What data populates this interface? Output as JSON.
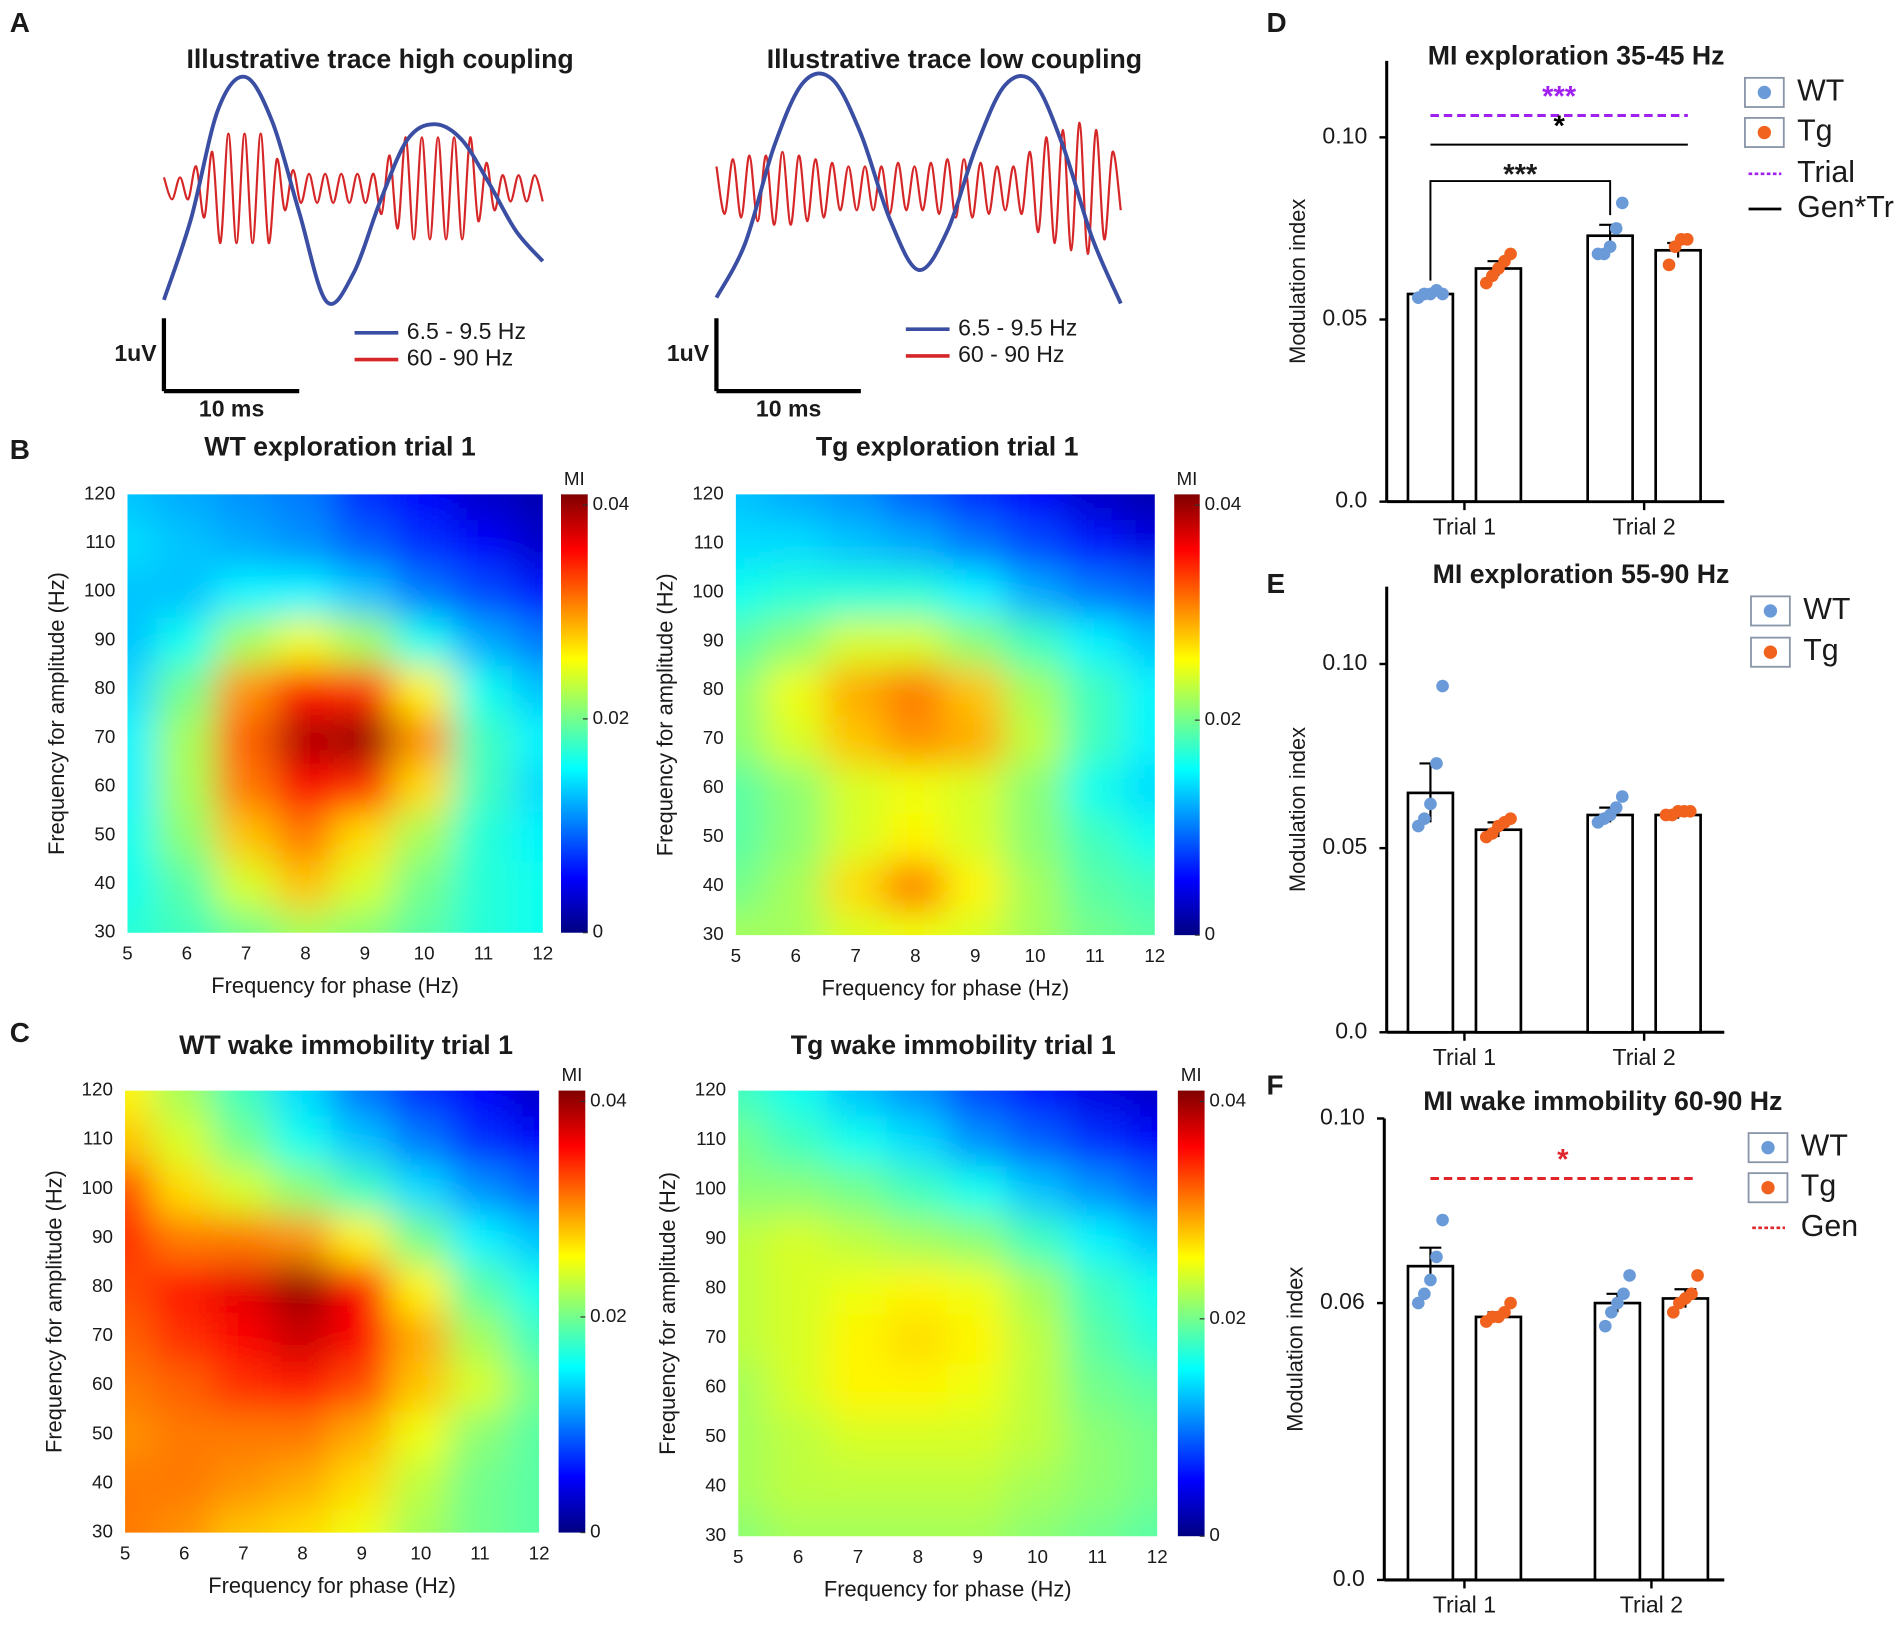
{
  "chart_data": [
    {
      "type": "line",
      "panel": "A",
      "title": "Illustrative trace high coupling",
      "xlim": [
        0,
        28
      ],
      "ylim": [
        -1.6,
        1.6
      ],
      "series": [
        {
          "name": "6.5 - 9.5 Hz",
          "color": "#3a4ea3",
          "values": [
            -1.53,
            -0.42,
            1.08,
            1.53,
            0.92,
            -0.33,
            -1.55,
            -1.17,
            -0.17,
            0.67,
            0.88,
            0.67,
            0.08,
            -0.58,
            -1.0
          ]
        },
        {
          "name": "60 - 90 Hz",
          "color": "#d62728",
          "values": [
            0.15,
            -0.15,
            0.15,
            -0.15,
            0.3,
            -0.4,
            0.5,
            -0.75,
            0.75,
            -0.75,
            0.75,
            -0.75,
            0.75,
            -0.75,
            0.4,
            -0.3,
            0.25,
            -0.2,
            0.2,
            -0.2,
            0.2,
            -0.2,
            0.2,
            -0.2,
            0.2,
            -0.2,
            0.2,
            -0.35,
            0.45,
            -0.55,
            0.7,
            -0.7,
            0.7,
            -0.7,
            0.7,
            -0.7,
            0.7,
            -0.7,
            0.7,
            -0.45,
            0.35,
            -0.3,
            0.18,
            -0.18,
            0.18,
            -0.18,
            0.18,
            -0.18
          ]
        }
      ],
      "scale_bar": {
        "x": 10,
        "x_label": "10 ms",
        "y": 1,
        "y_label": "1uV"
      }
    },
    {
      "type": "line",
      "title": "Illustrative trace low coupling",
      "xlim": [
        0,
        28
      ],
      "ylim": [
        -1.6,
        1.6
      ],
      "series": [
        {
          "name": "6.5 - 9.5 Hz",
          "color": "#3a4ea3",
          "values": [
            -1.5,
            -0.75,
            0.58,
            1.45,
            1.5,
            0.75,
            -0.42,
            -1.12,
            -0.58,
            0.58,
            1.42,
            1.45,
            0.58,
            -0.67,
            -1.58
          ]
        },
        {
          "name": "60 - 90 Hz",
          "color": "#d62728",
          "values": [
            0.3,
            -0.35,
            0.4,
            -0.4,
            0.45,
            -0.45,
            0.45,
            -0.5,
            0.5,
            -0.5,
            0.45,
            -0.45,
            0.4,
            -0.4,
            0.35,
            -0.3,
            0.3,
            -0.3,
            0.3,
            -0.3,
            0.3,
            -0.35,
            0.35,
            -0.3,
            0.3,
            -0.3,
            0.35,
            -0.35,
            0.4,
            -0.4,
            0.4,
            -0.4,
            0.35,
            -0.35,
            0.3,
            -0.3,
            0.3,
            -0.35,
            0.5,
            -0.6,
            0.7,
            -0.75,
            0.8,
            -0.85,
            0.9,
            -0.9,
            0.8,
            -0.7,
            0.5,
            -0.3
          ]
        }
      ],
      "scale_bar": {
        "x": 10,
        "x_label": "10 ms",
        "y": 1,
        "y_label": "1uV"
      }
    },
    {
      "type": "heatmap",
      "panel": "B",
      "title": "WT exploration trial 1",
      "xlabel": "Frequency for phase (Hz)",
      "ylabel": "Frequency for amplitude (Hz)",
      "x": [
        5,
        6,
        7,
        8,
        9,
        10,
        11,
        12
      ],
      "y": [
        30,
        40,
        50,
        60,
        70,
        80,
        90,
        100,
        110,
        120
      ],
      "z": [
        [
          0.017,
          0.018,
          0.02,
          0.022,
          0.021,
          0.019,
          0.017,
          0.016
        ],
        [
          0.016,
          0.019,
          0.024,
          0.028,
          0.024,
          0.02,
          0.017,
          0.016
        ],
        [
          0.016,
          0.021,
          0.028,
          0.031,
          0.027,
          0.022,
          0.017,
          0.015
        ],
        [
          0.015,
          0.022,
          0.031,
          0.036,
          0.034,
          0.027,
          0.018,
          0.014
        ],
        [
          0.015,
          0.022,
          0.032,
          0.039,
          0.04,
          0.03,
          0.018,
          0.015
        ],
        [
          0.014,
          0.02,
          0.03,
          0.035,
          0.034,
          0.026,
          0.016,
          0.013
        ],
        [
          0.013,
          0.016,
          0.022,
          0.025,
          0.022,
          0.016,
          0.012,
          0.01
        ],
        [
          0.013,
          0.013,
          0.015,
          0.015,
          0.013,
          0.01,
          0.008,
          0.006
        ],
        [
          0.014,
          0.013,
          0.012,
          0.011,
          0.009,
          0.007,
          0.005,
          0.003
        ],
        [
          0.013,
          0.012,
          0.011,
          0.01,
          0.007,
          0.005,
          0.003,
          0.002
        ]
      ],
      "xlim": [
        5,
        12
      ],
      "ylim": [
        30,
        120
      ],
      "xticks": [
        5,
        6,
        7,
        8,
        9,
        10,
        11,
        12
      ],
      "yticks": [
        30,
        40,
        50,
        60,
        70,
        80,
        90,
        100,
        110,
        120
      ],
      "colorbar_label": "MI",
      "clim": [
        0,
        0.041
      ],
      "cticks": [
        0,
        0.02,
        0.04
      ],
      "colormap": "jet"
    },
    {
      "type": "heatmap",
      "title": "Tg exploration trial 1",
      "xlabel": "Frequency for phase (Hz)",
      "ylabel": "Frequency for amplitude (Hz)",
      "x": [
        5,
        6,
        7,
        8,
        9,
        10,
        11,
        12
      ],
      "y": [
        30,
        40,
        50,
        60,
        70,
        80,
        90,
        100,
        110,
        120
      ],
      "z": [
        [
          0.022,
          0.022,
          0.024,
          0.025,
          0.024,
          0.022,
          0.02,
          0.019
        ],
        [
          0.02,
          0.022,
          0.027,
          0.031,
          0.026,
          0.022,
          0.019,
          0.018
        ],
        [
          0.019,
          0.021,
          0.024,
          0.026,
          0.024,
          0.021,
          0.018,
          0.016
        ],
        [
          0.019,
          0.021,
          0.024,
          0.025,
          0.024,
          0.021,
          0.016,
          0.014
        ],
        [
          0.021,
          0.024,
          0.028,
          0.03,
          0.029,
          0.023,
          0.018,
          0.015
        ],
        [
          0.021,
          0.025,
          0.029,
          0.031,
          0.028,
          0.022,
          0.018,
          0.015
        ],
        [
          0.019,
          0.021,
          0.024,
          0.024,
          0.021,
          0.018,
          0.015,
          0.013
        ],
        [
          0.016,
          0.017,
          0.017,
          0.017,
          0.015,
          0.012,
          0.01,
          0.009
        ],
        [
          0.014,
          0.014,
          0.013,
          0.012,
          0.01,
          0.008,
          0.006,
          0.004
        ],
        [
          0.013,
          0.012,
          0.011,
          0.009,
          0.007,
          0.005,
          0.003,
          0.002
        ]
      ],
      "xlim": [
        5,
        12
      ],
      "ylim": [
        30,
        120
      ],
      "xticks": [
        5,
        6,
        7,
        8,
        9,
        10,
        11,
        12
      ],
      "yticks": [
        30,
        40,
        50,
        60,
        70,
        80,
        90,
        100,
        110,
        120
      ],
      "colorbar_label": "MI",
      "clim": [
        0,
        0.041
      ],
      "cticks": [
        0,
        0.02,
        0.04
      ],
      "colormap": "jet"
    },
    {
      "type": "heatmap",
      "panel": "C",
      "title": "WT wake immobility trial 1",
      "xlabel": "Frequency for phase (Hz)",
      "ylabel": "Frequency for amplitude (Hz)",
      "x": [
        5,
        6,
        7,
        8,
        9,
        10,
        11,
        12
      ],
      "y": [
        30,
        40,
        50,
        60,
        70,
        80,
        90,
        100,
        110,
        120
      ],
      "z": [
        [
          0.031,
          0.03,
          0.028,
          0.027,
          0.025,
          0.022,
          0.02,
          0.019
        ],
        [
          0.031,
          0.031,
          0.03,
          0.029,
          0.027,
          0.023,
          0.02,
          0.019
        ],
        [
          0.03,
          0.031,
          0.031,
          0.031,
          0.029,
          0.025,
          0.021,
          0.019
        ],
        [
          0.031,
          0.032,
          0.034,
          0.035,
          0.033,
          0.028,
          0.024,
          0.02
        ],
        [
          0.032,
          0.034,
          0.036,
          0.038,
          0.036,
          0.029,
          0.022,
          0.018
        ],
        [
          0.033,
          0.035,
          0.037,
          0.04,
          0.036,
          0.026,
          0.019,
          0.016
        ],
        [
          0.034,
          0.031,
          0.031,
          0.03,
          0.026,
          0.02,
          0.015,
          0.013
        ],
        [
          0.033,
          0.027,
          0.024,
          0.021,
          0.018,
          0.014,
          0.011,
          0.009
        ],
        [
          0.028,
          0.024,
          0.02,
          0.016,
          0.013,
          0.01,
          0.007,
          0.005
        ],
        [
          0.026,
          0.022,
          0.018,
          0.014,
          0.01,
          0.007,
          0.005,
          0.003
        ]
      ],
      "xlim": [
        5,
        12
      ],
      "ylim": [
        30,
        120
      ],
      "xticks": [
        5,
        6,
        7,
        8,
        9,
        10,
        11,
        12
      ],
      "yticks": [
        30,
        40,
        50,
        60,
        70,
        80,
        90,
        100,
        110,
        120
      ],
      "colorbar_label": "MI",
      "clim": [
        0,
        0.041
      ],
      "cticks": [
        0,
        0.02,
        0.04
      ],
      "colormap": "jet"
    },
    {
      "type": "heatmap",
      "title": "Tg wake immobility trial 1",
      "xlabel": "Frequency for phase (Hz)",
      "ylabel": "Frequency for amplitude (Hz)",
      "x": [
        5,
        6,
        7,
        8,
        9,
        10,
        11,
        12
      ],
      "y": [
        30,
        40,
        50,
        60,
        70,
        80,
        90,
        100,
        110,
        120
      ],
      "z": [
        [
          0.021,
          0.022,
          0.022,
          0.022,
          0.022,
          0.021,
          0.02,
          0.019
        ],
        [
          0.022,
          0.023,
          0.023,
          0.023,
          0.023,
          0.022,
          0.021,
          0.02
        ],
        [
          0.022,
          0.023,
          0.024,
          0.024,
          0.024,
          0.023,
          0.021,
          0.02
        ],
        [
          0.022,
          0.024,
          0.026,
          0.026,
          0.025,
          0.023,
          0.02,
          0.019
        ],
        [
          0.023,
          0.024,
          0.026,
          0.027,
          0.026,
          0.023,
          0.019,
          0.017
        ],
        [
          0.023,
          0.024,
          0.025,
          0.026,
          0.025,
          0.022,
          0.018,
          0.016
        ],
        [
          0.023,
          0.024,
          0.023,
          0.022,
          0.021,
          0.018,
          0.015,
          0.013
        ],
        [
          0.021,
          0.021,
          0.02,
          0.018,
          0.016,
          0.013,
          0.011,
          0.009
        ],
        [
          0.02,
          0.018,
          0.016,
          0.014,
          0.011,
          0.009,
          0.007,
          0.005
        ],
        [
          0.018,
          0.016,
          0.013,
          0.011,
          0.008,
          0.006,
          0.004,
          0.003
        ]
      ],
      "xlim": [
        5,
        12
      ],
      "ylim": [
        30,
        120
      ],
      "xticks": [
        5,
        6,
        7,
        8,
        9,
        10,
        11,
        12
      ],
      "yticks": [
        30,
        40,
        50,
        60,
        70,
        80,
        90,
        100,
        110,
        120
      ],
      "colorbar_label": "MI",
      "clim": [
        0,
        0.041
      ],
      "cticks": [
        0,
        0.02,
        0.04
      ],
      "colormap": "jet"
    },
    {
      "type": "bar",
      "panel": "D",
      "title": "MI exploration 35-45 Hz",
      "ylabel": "Modulation index",
      "categories": [
        "Trial 1",
        "Trial 2"
      ],
      "series": [
        {
          "name": "WT",
          "color": "#6a9bd8",
          "values": [
            0.057,
            0.073
          ],
          "errors": [
            0.001,
            0.003
          ],
          "points": [
            [
              0.056,
              0.057,
              0.057,
              0.058,
              0.057
            ],
            [
              0.068,
              0.068,
              0.07,
              0.075,
              0.082
            ]
          ]
        },
        {
          "name": "Tg",
          "color": "#f0621e",
          "values": [
            0.064,
            0.069
          ],
          "errors": [
            0.002,
            0.002
          ],
          "points": [
            [
              0.06,
              0.062,
              0.064,
              0.066,
              0.068
            ],
            [
              0.065,
              0.07,
              0.072,
              0.072
            ]
          ]
        }
      ],
      "ylim": [
        0,
        0.121
      ],
      "yticks": [
        {
          "value": 0,
          "label": "0.0"
        },
        0.05,
        {
          "value": 0.1,
          "label": "0.10"
        }
      ],
      "annotations": [
        {
          "text": "***",
          "y": 0.106,
          "color": "#a020f0",
          "style": "dashed"
        },
        {
          "text": "*",
          "y": 0.098,
          "color": "#000000",
          "style": "solid"
        },
        {
          "text": "***",
          "y": 0.088,
          "color": "#000000",
          "style": "bracket"
        }
      ],
      "legend_lines": [
        {
          "name": "Trial",
          "color": "#a020f0",
          "style": "dashed"
        },
        {
          "name": "Gen*Tr",
          "color": "#000000",
          "style": "solid"
        }
      ]
    },
    {
      "type": "bar",
      "panel": "E",
      "title": "MI exploration 55-90 Hz",
      "ylabel": "Modulation index",
      "categories": [
        "Trial 1",
        "Trial 2"
      ],
      "series": [
        {
          "name": "WT",
          "color": "#6a9bd8",
          "values": [
            0.065,
            0.059
          ],
          "errors": [
            0.008,
            0.002
          ],
          "points": [
            [
              0.056,
              0.058,
              0.062,
              0.073,
              0.094
            ],
            [
              0.057,
              0.058,
              0.059,
              0.061,
              0.064
            ]
          ]
        },
        {
          "name": "Tg",
          "color": "#f0621e",
          "values": [
            0.055,
            0.059
          ],
          "errors": [
            0.002,
            0.001
          ],
          "points": [
            [
              0.053,
              0.054,
              0.056,
              0.057,
              0.058
            ],
            [
              0.059,
              0.059,
              0.06,
              0.06,
              0.06
            ]
          ]
        }
      ],
      "ylim": [
        0,
        0.121
      ],
      "yticks": [
        {
          "value": 0,
          "label": "0.0"
        },
        0.05,
        {
          "value": 0.1,
          "label": "0.10"
        }
      ]
    },
    {
      "type": "bar",
      "panel": "F",
      "title": "MI wake immobility 60-90 Hz",
      "ylabel": "Modulation index",
      "categories": [
        "Trial 1",
        "Trial 2"
      ],
      "series": [
        {
          "name": "WT",
          "color": "#6a9bd8",
          "values": [
            0.068,
            0.06
          ],
          "errors": [
            0.004,
            0.002
          ],
          "points": [
            [
              0.06,
              0.062,
              0.065,
              0.07,
              0.078
            ],
            [
              0.055,
              0.058,
              0.06,
              0.062,
              0.066
            ]
          ]
        },
        {
          "name": "Tg",
          "color": "#f0621e",
          "values": [
            0.057,
            0.061
          ],
          "errors": [
            0.001,
            0.002
          ],
          "points": [
            [
              0.056,
              0.057,
              0.057,
              0.058,
              0.06
            ],
            [
              0.058,
              0.06,
              0.061,
              0.062,
              0.066
            ]
          ]
        }
      ],
      "ylim": [
        0,
        0.1
      ],
      "yticks": [
        {
          "value": 0,
          "label": "0.0"
        },
        0.06,
        {
          "value": 0.1,
          "label": "0.10"
        }
      ],
      "annotations": [
        {
          "text": "*",
          "y": 0.087,
          "color": "#e0262a",
          "style": "dashed"
        }
      ],
      "legend_lines": [
        {
          "name": "Gen",
          "color": "#e0262a",
          "style": "dashed"
        }
      ]
    }
  ]
}
